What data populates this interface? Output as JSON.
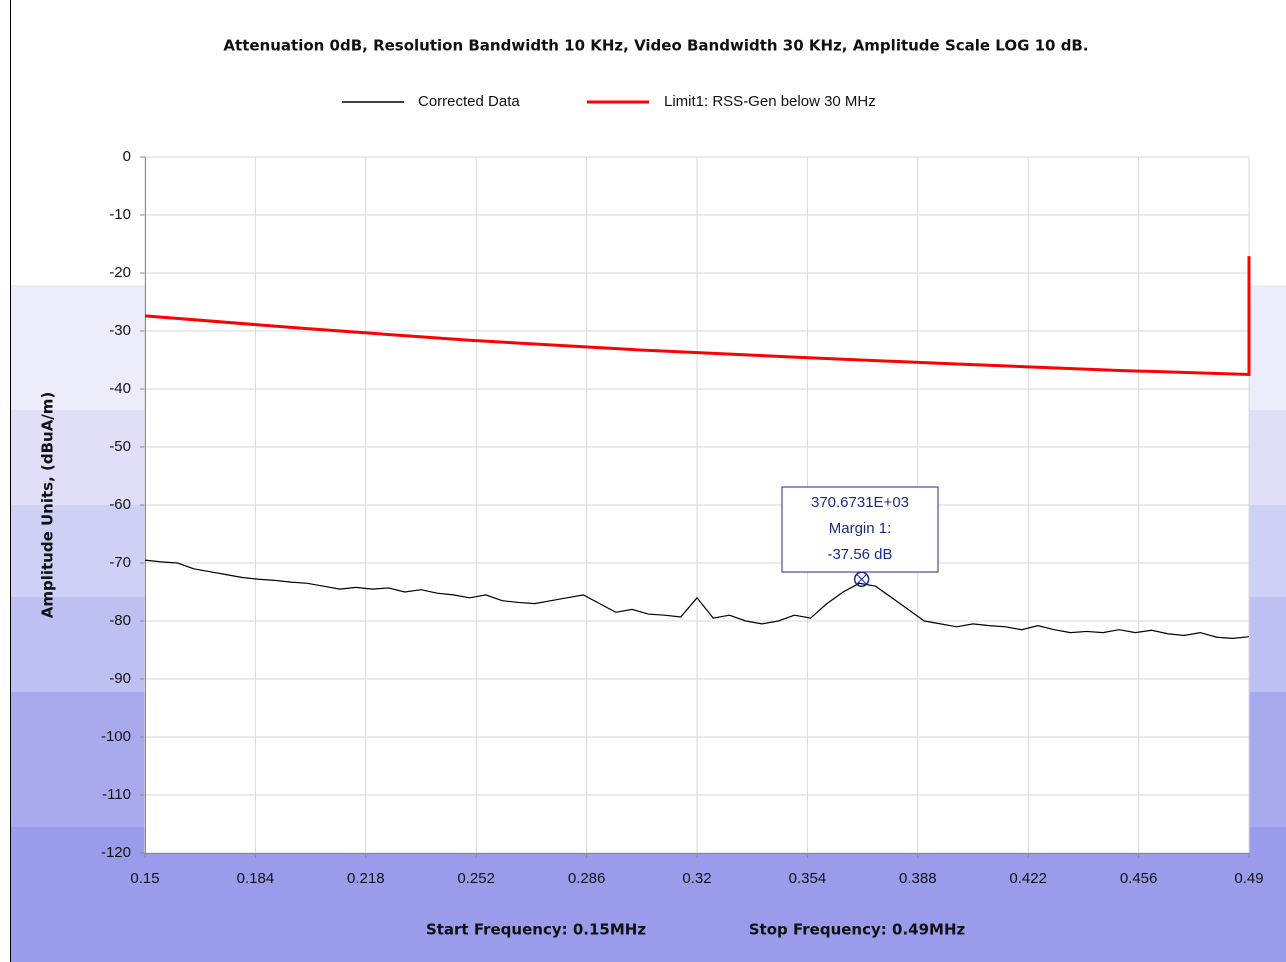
{
  "chart_data": {
    "type": "line",
    "title": "Attenuation 0dB, Resolution Bandwidth 10 KHz, Video Bandwidth 30 KHz, Amplitude Scale LOG 10 dB.",
    "ylabel": "Amplitude Units, (dBuA/m)",
    "footer": [
      "Start Frequency: 0.15MHz",
      "Stop Frequency: 0.49MHz"
    ],
    "xlim": [
      0.15,
      0.49
    ],
    "xticks": [
      0.15,
      0.184,
      0.218,
      0.252,
      0.286,
      0.32,
      0.354,
      0.388,
      0.422,
      0.456,
      0.49
    ],
    "ylim": [
      -120,
      0
    ],
    "yticks": [
      0,
      -10,
      -20,
      -30,
      -40,
      -50,
      -60,
      -70,
      -80,
      -90,
      -100,
      -110,
      -120
    ],
    "grid": true,
    "legend": "top",
    "series": [
      {
        "name": "Corrected Data",
        "color": "#000000",
        "x": [
          0.15,
          0.155,
          0.16,
          0.165,
          0.17,
          0.175,
          0.18,
          0.185,
          0.19,
          0.195,
          0.2,
          0.205,
          0.21,
          0.215,
          0.22,
          0.225,
          0.23,
          0.235,
          0.24,
          0.245,
          0.25,
          0.255,
          0.26,
          0.265,
          0.27,
          0.275,
          0.28,
          0.285,
          0.29,
          0.295,
          0.3,
          0.305,
          0.31,
          0.315,
          0.32,
          0.325,
          0.33,
          0.335,
          0.34,
          0.345,
          0.35,
          0.355,
          0.36,
          0.365,
          0.37,
          0.375,
          0.38,
          0.385,
          0.39,
          0.395,
          0.4,
          0.405,
          0.41,
          0.415,
          0.42,
          0.425,
          0.43,
          0.435,
          0.44,
          0.445,
          0.45,
          0.455,
          0.46,
          0.465,
          0.47,
          0.475,
          0.48,
          0.485,
          0.49
        ],
        "values": [
          -69.5,
          -69.8,
          -70,
          -71,
          -71.5,
          -72,
          -72.5,
          -72.8,
          -73,
          -73.3,
          -73.5,
          -74,
          -74.5,
          -74.2,
          -74.5,
          -74.3,
          -75,
          -74.6,
          -75.2,
          -75.5,
          -76,
          -75.5,
          -76.5,
          -76.8,
          -77,
          -76.5,
          -76,
          -75.5,
          -77,
          -78.5,
          -78,
          -78.8,
          -79,
          -79.3,
          -76,
          -79.5,
          -79,
          -80,
          -80.5,
          -80,
          -79,
          -79.5,
          -77,
          -75,
          -73.5,
          -74,
          -76,
          -78,
          -80,
          -80.5,
          -81,
          -80.5,
          -80.8,
          -81,
          -81.5,
          -80.8,
          -81.5,
          -82,
          -81.8,
          -82,
          -81.5,
          -82,
          -81.6,
          -82.2,
          -82.5,
          -82,
          -82.8,
          -83,
          -82.7
        ]
      },
      {
        "name": "Limit1: RSS-Gen below 30 MHz",
        "color": "#ff0000",
        "x": [
          0.15,
          0.2,
          0.25,
          0.3,
          0.35,
          0.4,
          0.45,
          0.49,
          0.49
        ],
        "values": [
          -27.4,
          -29.6,
          -31.6,
          -33.2,
          -34.5,
          -35.7,
          -36.8,
          -37.5,
          -17.1
        ]
      }
    ],
    "annotation": {
      "lines": [
        "370.6731E+03",
        "Margin 1:",
        "-37.56 dB"
      ],
      "x": 0.3707,
      "y": -72.8
    }
  }
}
